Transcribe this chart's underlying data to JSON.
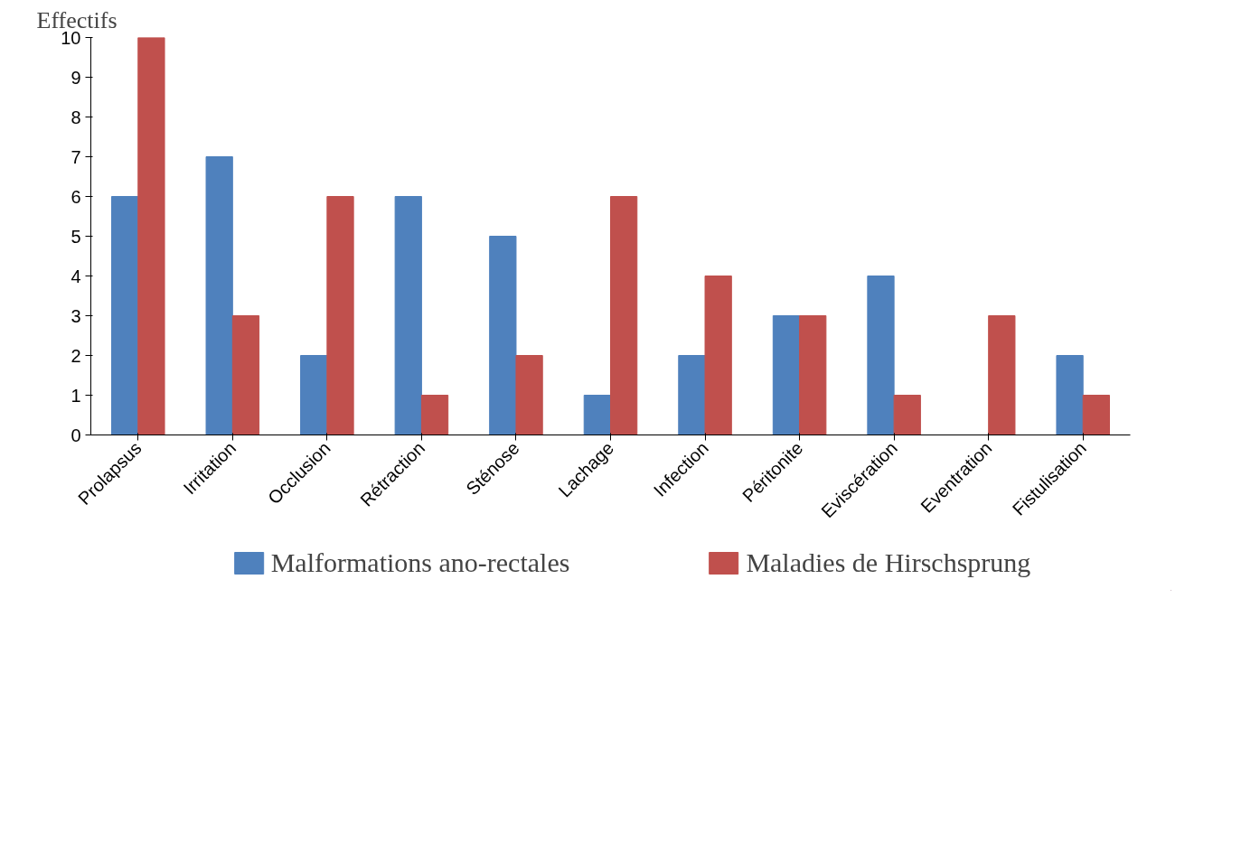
{
  "chart_data": {
    "type": "bar",
    "ylabel": "Effectifs",
    "categories": [
      "Prolapsus",
      "Irritation",
      "Occlusion",
      "Rétraction",
      "Sténose",
      "Lachage",
      "Infection",
      "Péritonite",
      "Eviscération",
      "Eventration",
      "Fistulisation"
    ],
    "series": [
      {
        "name": "Malformations ano-rectales",
        "color": "#4f81bd",
        "values": [
          6,
          7,
          2,
          6,
          5,
          1,
          2,
          3,
          4,
          0,
          2
        ]
      },
      {
        "name": "Maladies de Hirschsprung",
        "color": "#c0504d",
        "values": [
          10,
          3,
          6,
          1,
          2,
          6,
          4,
          3,
          1,
          3,
          1
        ]
      }
    ],
    "ylim": [
      0,
      10
    ],
    "yticks": [
      0,
      1,
      2,
      3,
      4,
      5,
      6,
      7,
      8,
      9,
      10
    ],
    "grid": false,
    "legend": "bottom"
  }
}
